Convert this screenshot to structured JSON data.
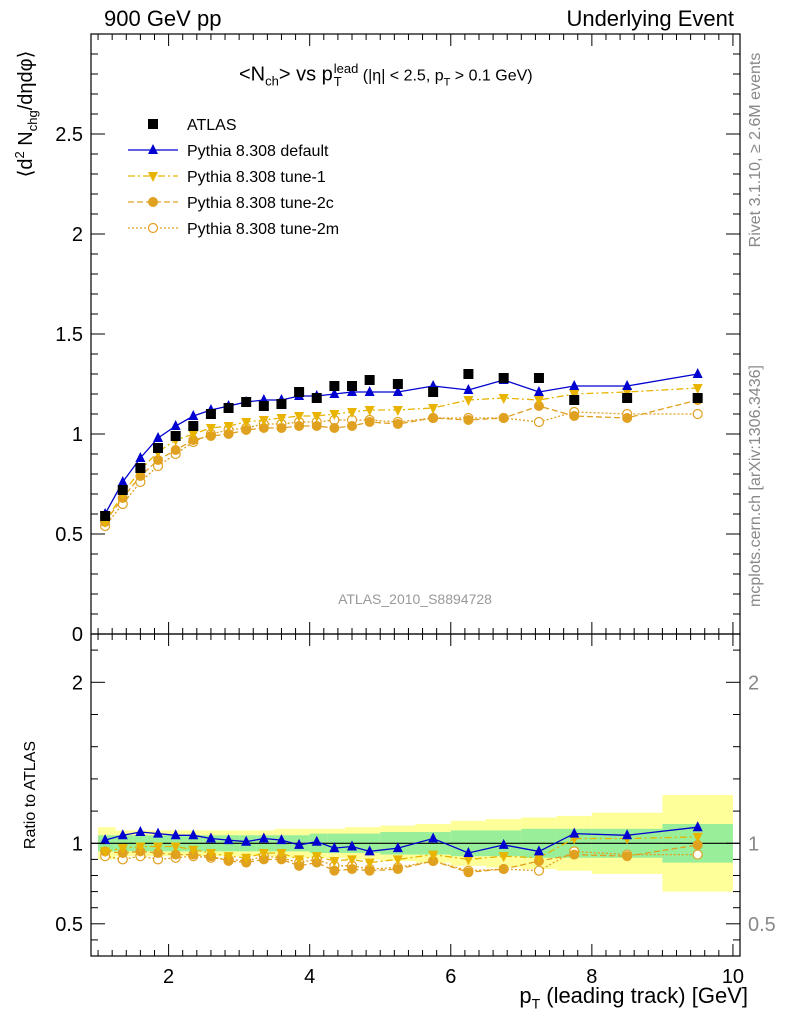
{
  "header": {
    "left": "900 GeV pp",
    "right": "Underlying Event"
  },
  "side_labels": {
    "rivet": "Rivet 3.1.10, ≥ 2.6M events",
    "mcplots": "mcplots.cern.ch [arXiv:1306.3436]"
  },
  "chart_data": [
    {
      "type": "scatter",
      "panel": "main",
      "title_parts": {
        "a": "<N",
        "a_sub": "ch",
        "b": "> vs p",
        "b_sup": "lead",
        "b_sub": "T",
        "c": " (|η| < 2.5, p",
        "c_sub": "T",
        "d": " > 0.1 GeV)"
      },
      "ylabel_parts": {
        "a": "⟨d",
        "a_sup": "2",
        "b": " N",
        "b_sub": "chg",
        "c": "/dηdφ⟩"
      },
      "watermark": "ATLAS_2010_S8894728",
      "xlim": [
        0.9,
        10.1
      ],
      "ylim": [
        0,
        3.0
      ],
      "yticks": [
        0,
        0.5,
        1,
        1.5,
        2,
        2.5
      ],
      "ytick_labels": [
        "0",
        "0.5",
        "1",
        "1.5",
        "2",
        "2.5"
      ],
      "legend_position": "top-left",
      "series": [
        {
          "name": "ATLAS",
          "color": "#000000",
          "marker": "square",
          "x": [
            1.1,
            1.35,
            1.6,
            1.85,
            2.1,
            2.35,
            2.6,
            2.85,
            3.1,
            3.35,
            3.6,
            3.85,
            4.1,
            4.35,
            4.6,
            4.85,
            5.25,
            5.75,
            6.25,
            6.75,
            7.25,
            7.75,
            8.5,
            9.5
          ],
          "y": [
            0.59,
            0.72,
            0.83,
            0.93,
            0.99,
            1.04,
            1.1,
            1.13,
            1.16,
            1.14,
            1.15,
            1.21,
            1.18,
            1.24,
            1.24,
            1.27,
            1.25,
            1.21,
            1.3,
            1.28,
            1.28,
            1.17,
            1.18,
            1.18
          ]
        },
        {
          "name": "Pythia 8.308 default",
          "color": "#0000d0",
          "marker": "triangle-up",
          "dash": "",
          "x": [
            1.1,
            1.35,
            1.6,
            1.85,
            2.1,
            2.35,
            2.6,
            2.85,
            3.1,
            3.35,
            3.6,
            3.85,
            4.1,
            4.35,
            4.6,
            4.85,
            5.25,
            5.75,
            6.25,
            6.75,
            7.25,
            7.75,
            8.5,
            9.5
          ],
          "y": [
            0.6,
            0.76,
            0.88,
            0.98,
            1.04,
            1.09,
            1.12,
            1.14,
            1.16,
            1.17,
            1.17,
            1.19,
            1.19,
            1.2,
            1.21,
            1.21,
            1.21,
            1.24,
            1.22,
            1.27,
            1.21,
            1.24,
            1.24,
            1.3
          ]
        },
        {
          "name": "Pythia 8.308 tune-1",
          "color": "#e8b400",
          "marker": "triangle-down",
          "dash": "7,3,2,3",
          "x": [
            1.1,
            1.35,
            1.6,
            1.85,
            2.1,
            2.35,
            2.6,
            2.85,
            3.1,
            3.35,
            3.6,
            3.85,
            4.1,
            4.35,
            4.6,
            4.85,
            5.25,
            5.75,
            6.25,
            6.75,
            7.25,
            7.75,
            8.5,
            9.5
          ],
          "y": [
            0.56,
            0.7,
            0.82,
            0.91,
            0.97,
            1.0,
            1.03,
            1.04,
            1.06,
            1.07,
            1.08,
            1.09,
            1.09,
            1.1,
            1.11,
            1.12,
            1.12,
            1.13,
            1.17,
            1.18,
            1.17,
            1.2,
            1.21,
            1.23
          ]
        },
        {
          "name": "Pythia 8.308 tune-2c",
          "color": "#e0a020",
          "marker": "circle",
          "dash": "6,3",
          "x": [
            1.1,
            1.35,
            1.6,
            1.85,
            2.1,
            2.35,
            2.6,
            2.85,
            3.1,
            3.35,
            3.6,
            3.85,
            4.1,
            4.35,
            4.6,
            4.85,
            5.25,
            5.75,
            6.25,
            6.75,
            7.25,
            7.75,
            8.5,
            9.5
          ],
          "y": [
            0.56,
            0.68,
            0.79,
            0.87,
            0.92,
            0.97,
            0.99,
            1.0,
            1.02,
            1.03,
            1.03,
            1.04,
            1.04,
            1.03,
            1.04,
            1.06,
            1.05,
            1.08,
            1.07,
            1.08,
            1.14,
            1.09,
            1.08,
            1.17
          ]
        },
        {
          "name": "Pythia 8.308 tune-2m",
          "color": "#e0a020",
          "marker": "circle-open",
          "dash": "2,2",
          "x": [
            1.1,
            1.35,
            1.6,
            1.85,
            2.1,
            2.35,
            2.6,
            2.85,
            3.1,
            3.35,
            3.6,
            3.85,
            4.1,
            4.35,
            4.6,
            4.85,
            5.25,
            5.75,
            6.25,
            6.75,
            7.25,
            7.75,
            8.5,
            9.5
          ],
          "y": [
            0.54,
            0.65,
            0.76,
            0.84,
            0.9,
            0.96,
            1.0,
            1.02,
            1.03,
            1.05,
            1.05,
            1.06,
            1.06,
            1.07,
            1.07,
            1.07,
            1.06,
            1.08,
            1.08,
            1.08,
            1.06,
            1.11,
            1.1,
            1.1
          ]
        }
      ]
    },
    {
      "type": "line",
      "panel": "ratio",
      "ylabel": "Ratio to ATLAS",
      "xlabel_parts": {
        "a": "p",
        "a_sub": "T",
        "b": " (leading track) [GeV]"
      },
      "xlim": [
        0.9,
        10.1
      ],
      "xticks": [
        2,
        4,
        6,
        8,
        10
      ],
      "xtick_labels": [
        "2",
        "4",
        "6",
        "8",
        "10"
      ],
      "ylim": [
        0.3,
        2.3
      ],
      "yticks": [
        0.5,
        1,
        2
      ],
      "ytick_labels": [
        "0.5",
        "1",
        "2"
      ],
      "bands": {
        "edges": [
          1.0,
          1.25,
          1.5,
          1.75,
          2.0,
          2.25,
          2.5,
          2.75,
          3.0,
          3.25,
          3.5,
          3.75,
          4.0,
          4.25,
          4.5,
          4.75,
          5.0,
          5.5,
          6.0,
          6.5,
          7.0,
          7.5,
          8.0,
          9.0,
          10.0
        ],
        "inner": [
          0.05,
          0.05,
          0.05,
          0.05,
          0.05,
          0.05,
          0.05,
          0.05,
          0.05,
          0.05,
          0.05,
          0.05,
          0.06,
          0.06,
          0.06,
          0.06,
          0.07,
          0.07,
          0.08,
          0.08,
          0.09,
          0.09,
          0.09,
          0.12
        ],
        "outer": [
          0.1,
          0.08,
          0.08,
          0.08,
          0.08,
          0.08,
          0.08,
          0.08,
          0.08,
          0.08,
          0.09,
          0.09,
          0.09,
          0.09,
          0.1,
          0.1,
          0.11,
          0.12,
          0.14,
          0.15,
          0.16,
          0.17,
          0.19,
          0.3
        ]
      },
      "series": [
        {
          "name": "Pythia 8.308 default",
          "color": "#0000d0",
          "marker": "triangle-up",
          "dash": "",
          "y": [
            1.02,
            1.05,
            1.07,
            1.06,
            1.05,
            1.05,
            1.03,
            1.02,
            1.01,
            1.03,
            1.02,
            0.99,
            1.01,
            0.97,
            0.98,
            0.95,
            0.97,
            1.03,
            0.94,
            0.99,
            0.95,
            1.06,
            1.05,
            1.1
          ]
        },
        {
          "name": "Pythia 8.308 tune-1",
          "color": "#e8b400",
          "marker": "triangle-down",
          "dash": "7,3,2,3",
          "y": [
            0.95,
            0.97,
            0.98,
            0.98,
            0.98,
            0.96,
            0.94,
            0.92,
            0.91,
            0.94,
            0.94,
            0.9,
            0.92,
            0.89,
            0.9,
            0.88,
            0.9,
            0.93,
            0.9,
            0.92,
            0.91,
            1.03,
            1.03,
            1.04
          ]
        },
        {
          "name": "Pythia 8.308 tune-2c",
          "color": "#e0a020",
          "marker": "circle",
          "dash": "6,3",
          "y": [
            0.95,
            0.94,
            0.95,
            0.94,
            0.93,
            0.93,
            0.92,
            0.89,
            0.88,
            0.9,
            0.9,
            0.86,
            0.88,
            0.83,
            0.84,
            0.83,
            0.84,
            0.89,
            0.82,
            0.84,
            0.89,
            0.93,
            0.92,
            0.99
          ]
        },
        {
          "name": "Pythia 8.308 tune-2m",
          "color": "#e0a020",
          "marker": "circle-open",
          "dash": "2,2",
          "y": [
            0.92,
            0.9,
            0.92,
            0.9,
            0.91,
            0.92,
            0.91,
            0.9,
            0.89,
            0.92,
            0.91,
            0.88,
            0.9,
            0.86,
            0.86,
            0.84,
            0.85,
            0.89,
            0.83,
            0.84,
            0.83,
            0.95,
            0.93,
            0.93
          ]
        }
      ]
    }
  ]
}
